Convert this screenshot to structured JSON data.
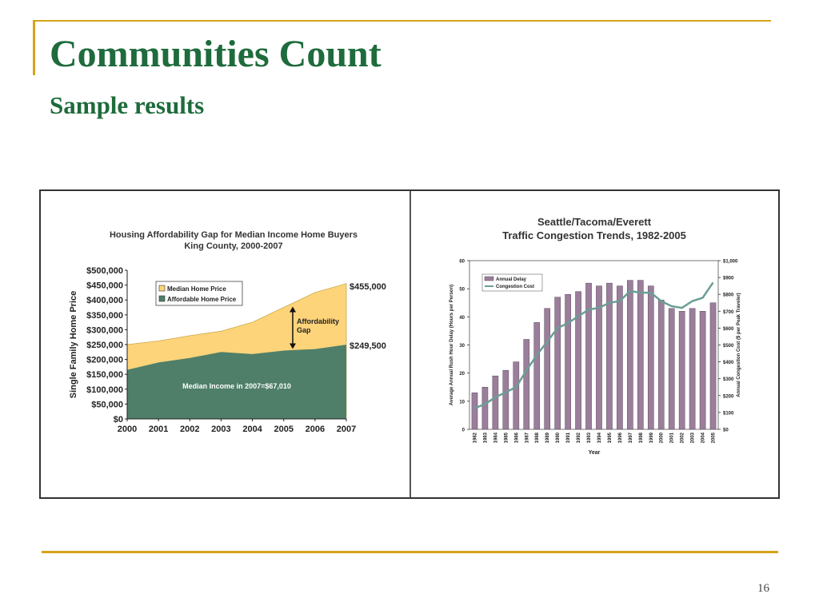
{
  "slide": {
    "title": "Communities Count",
    "subtitle": "Sample results",
    "page_number": "16",
    "accent_color": "#d4a419",
    "title_color": "#1e6b3c"
  },
  "chart_data": [
    {
      "type": "area",
      "title": "Housing Affordability Gap for Median Income Home Buyers",
      "subtitle": "King County, 2000-2007",
      "ylabel": "Single Family Home Price",
      "xlabel": "",
      "ylim": [
        0,
        500000
      ],
      "yticks": [
        "$0",
        "$50,000",
        "$100,000",
        "$150,000",
        "$200,000",
        "$250,000",
        "$300,000",
        "$350,000",
        "$400,000",
        "$450,000",
        "$500,000"
      ],
      "x": [
        "2000",
        "2001",
        "2002",
        "2003",
        "2004",
        "2005",
        "2006",
        "2007"
      ],
      "series": [
        {
          "name": "Median Home Price",
          "color": "#fdd47a",
          "values": [
            250000,
            262000,
            280000,
            295000,
            325000,
            375000,
            425000,
            455000
          ]
        },
        {
          "name": "Affordable Home Price",
          "color": "#4f7f69",
          "values": [
            165000,
            190000,
            205000,
            225000,
            218000,
            230000,
            235000,
            249500
          ]
        }
      ],
      "legend_position": "top-left",
      "annotations": {
        "top_value": "$455,000",
        "bottom_value": "$249,500",
        "gap_label_1": "Affordability",
        "gap_label_2": "Gap",
        "income_note": "Median Income in 2007=$67,010"
      }
    },
    {
      "type": "bar",
      "title": "Seattle/Tacoma/Everett",
      "subtitle": "Traffic Congestion Trends, 1982-2005",
      "xlabel": "Year",
      "ylabel": "Average Annual Rush Hour Delay (Hours per Person)",
      "y2label": "Annual Congestion Cost ($ per Peak Traveler)",
      "ylim": [
        0,
        60
      ],
      "y2lim": [
        0,
        1000
      ],
      "yticks": [
        "0",
        "10",
        "20",
        "30",
        "40",
        "50",
        "60"
      ],
      "y2ticks": [
        "$0",
        "$100",
        "$200",
        "$300",
        "$400",
        "$500",
        "$600",
        "$700",
        "$800",
        "$900",
        "$1,000"
      ],
      "categories": [
        "1982",
        "1983",
        "1984",
        "1985",
        "1986",
        "1987",
        "1988",
        "1989",
        "1990",
        "1991",
        "1992",
        "1993",
        "1994",
        "1995",
        "1996",
        "1997",
        "1998",
        "1999",
        "2000",
        "2001",
        "2002",
        "2003",
        "2004",
        "2005"
      ],
      "series": [
        {
          "name": "Annual Delay",
          "type": "bar",
          "color": "#9b7e9b",
          "values": [
            13,
            15,
            19,
            21,
            24,
            32,
            38,
            43,
            47,
            48,
            49,
            52,
            51,
            52,
            51,
            53,
            53,
            51,
            46,
            43,
            42,
            43,
            42,
            45
          ]
        },
        {
          "name": "Congestion Cost",
          "type": "line",
          "axis": "right",
          "color": "#6a9e94",
          "values": [
            125,
            150,
            190,
            220,
            250,
            350,
            440,
            520,
            600,
            630,
            670,
            710,
            720,
            750,
            760,
            820,
            810,
            810,
            760,
            730,
            720,
            760,
            780,
            870
          ]
        }
      ],
      "legend_position": "top-left"
    }
  ]
}
